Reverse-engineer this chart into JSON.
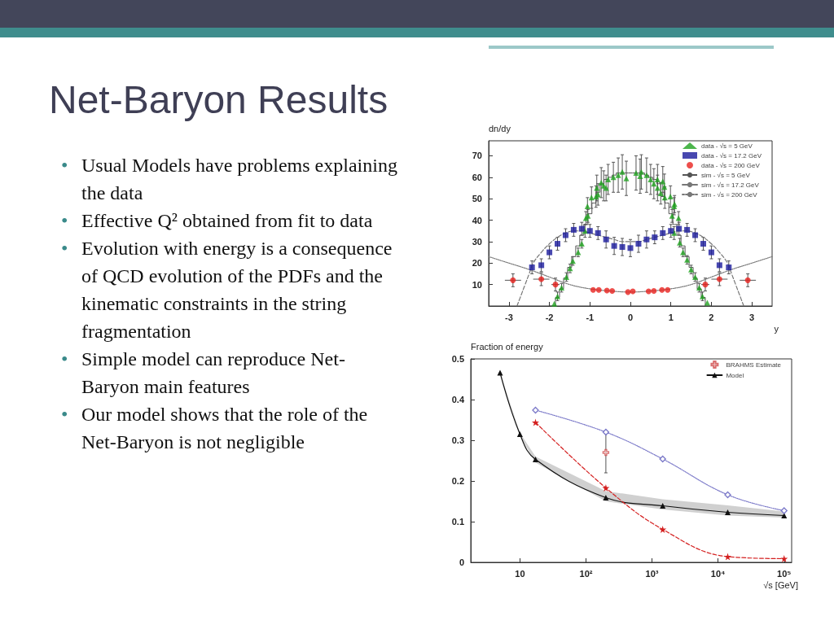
{
  "chart_data": [
    {
      "type": "other",
      "title": "Net-Baryon Results",
      "annotations": [
        "• Usual Models have problems explaining the data",
        "• Effective Q² obtained from fit to data",
        "• Evolution with energy is a consequence of QCD evolution of the PDFs and the kinematic constraints in the string fragmentation",
        "• Simple model can reproduce Net-Baryon main features",
        "• Our model shows that the role of the Net-Baryon is not negligible"
      ]
    },
    {
      "type": "scatter",
      "xlabel": "y",
      "ylabel": "dn/dy",
      "xlim": [
        -3.5,
        3.5
      ],
      "ylim": [
        0,
        77
      ],
      "xticks": [
        -3,
        -2,
        -1,
        0,
        1,
        2,
        3
      ],
      "yticks": [
        10,
        20,
        30,
        40,
        50,
        60,
        70
      ],
      "grid": false,
      "legend": "top right",
      "series": [
        {
          "name": "data - √s = 5 GeV",
          "color": "#1fa31f",
          "marker": "triangle",
          "x": [
            -1.88,
            -1.8,
            -1.7,
            -1.58,
            -1.49,
            -1.42,
            -1.29,
            -1.2,
            -1.12,
            -1.1,
            -1.05,
            -1.06,
            -0.96,
            -0.85,
            -0.83,
            -0.8,
            -0.72,
            -0.66,
            -0.6,
            -0.55,
            -0.42,
            -0.3,
            -0.2,
            -0.1,
            0.14,
            0.24,
            0.27,
            0.4,
            0.5,
            0.58,
            0.67,
            0.67,
            0.75,
            0.8,
            0.84,
            0.85,
            0.99,
            1.03,
            1.09,
            1.08,
            1.19,
            1.08,
            1.22,
            1.3,
            1.4,
            1.5,
            1.6,
            1.7,
            1.78,
            1.9
          ],
          "values": [
            1,
            4.5,
            8.5,
            13.5,
            17.5,
            21,
            25,
            29,
            35,
            41,
            42,
            46.5,
            50.5,
            51,
            55,
            52,
            57.5,
            56,
            55,
            59,
            60,
            61,
            62.5,
            59.5,
            62,
            60.5,
            62.5,
            61,
            59,
            57,
            59,
            55,
            52.5,
            58,
            55.5,
            50.5,
            51,
            42,
            47.5,
            46.5,
            41,
            34,
            29.5,
            25,
            21.5,
            17,
            13.5,
            8.5,
            4.5,
            1.5
          ],
          "errors": [
            null,
            2,
            2,
            2,
            2,
            2,
            2,
            2,
            3,
            3,
            3,
            4,
            5,
            5,
            6,
            5,
            7,
            7,
            6,
            7,
            7,
            8,
            8,
            8,
            8,
            8,
            8,
            8,
            7,
            7,
            7,
            6,
            5,
            7,
            6,
            5,
            5,
            3,
            4,
            4,
            3,
            3,
            2,
            2,
            2,
            2,
            2,
            2,
            2,
            null
          ]
        },
        {
          "name": "data - √s = 17.2 GeV",
          "color": "#1a1a9c",
          "marker": "square",
          "x": [
            -2.43,
            -2.2,
            -2.0,
            -1.8,
            -1.6,
            -1.4,
            -1.2,
            -1.0,
            -0.8,
            -0.6,
            -0.4,
            -0.2,
            0,
            0.2,
            0.4,
            0.6,
            0.8,
            1.0,
            1.2,
            1.4,
            1.6,
            1.8,
            2.0,
            2.2,
            2.43
          ],
          "values": [
            18,
            19,
            25,
            29,
            33,
            35.5,
            36,
            35,
            34,
            31,
            28,
            27.5,
            27,
            29,
            31,
            32,
            34,
            35,
            36,
            35.5,
            33,
            29,
            25,
            19,
            18
          ],
          "errors": [
            3,
            3,
            3,
            3,
            3,
            3,
            3,
            3,
            3,
            4,
            4,
            4,
            4,
            4,
            4,
            3,
            3,
            3,
            3,
            3,
            3,
            3,
            3,
            3,
            3
          ]
        },
        {
          "name": "data - √s = 200 GeV",
          "color": "#e8221e",
          "marker": "circle",
          "x": [
            -2.9,
            -2.2,
            -1.85,
            -0.92,
            -0.78,
            -0.58,
            -0.45,
            -0.06,
            0.06,
            0.45,
            0.58,
            0.78,
            0.92,
            1.85,
            2.2,
            2.9
          ],
          "values": [
            12,
            12.5,
            10,
            7.5,
            7.5,
            7.2,
            7,
            6.5,
            6.8,
            6.8,
            7,
            7.5,
            7.5,
            10,
            12.5,
            12
          ],
          "errors": [
            3,
            3,
            3,
            null,
            null,
            null,
            null,
            null,
            null,
            null,
            null,
            null,
            null,
            3,
            3,
            3
          ],
          "xerrors": [
            0.2,
            0.2,
            0.1,
            null,
            null,
            null,
            null,
            null,
            null,
            null,
            null,
            null,
            null,
            0.1,
            0.2,
            0.2
          ]
        },
        {
          "name": "sim - √s = 5 GeV",
          "type": "step",
          "color": "#555555",
          "marker": "none",
          "line_style": "solid",
          "x": [
            -2.0,
            -1.9,
            -1.8,
            -1.7,
            -1.6,
            -1.5,
            -1.4,
            -1.3,
            -1.2,
            -1.1,
            -1.0,
            -0.9,
            -0.8,
            -0.7,
            -0.6,
            -0.5,
            -0.4,
            -0.3,
            -0.2,
            -0.1,
            0,
            0.1,
            0.2,
            0.3,
            0.4,
            0.5,
            0.6,
            0.7,
            0.8,
            0.9,
            1.0,
            1.1,
            1.2,
            1.3,
            1.4,
            1.5,
            1.6,
            1.7,
            1.8,
            1.9,
            2.0
          ],
          "values": [
            0,
            0,
            4,
            8,
            13,
            18,
            23,
            28,
            33,
            38,
            43,
            48,
            53,
            57,
            59,
            60,
            61,
            62,
            62,
            62,
            62,
            62,
            62,
            62,
            61,
            60,
            59,
            57,
            53,
            48,
            43,
            38,
            33,
            28,
            23,
            18,
            13,
            8,
            4,
            0,
            0
          ]
        },
        {
          "name": "sim - √s = 17.2 GeV",
          "type": "line",
          "color": "#777777",
          "marker": "none",
          "line_style": "dashed",
          "x": [
            -2.8,
            -2.7,
            -2.6,
            -2.5,
            -2.4,
            -2.2,
            -2.0,
            -1.8,
            -1.6,
            -1.4,
            -1.2,
            -1.0,
            -0.8,
            -0.6,
            -0.4,
            -0.2,
            0,
            0.2,
            0.4,
            0.6,
            0.8,
            1.0,
            1.2,
            1.4,
            1.6,
            1.8,
            2.0,
            2.2,
            2.4,
            2.5,
            2.6,
            2.7,
            2.8
          ],
          "values": [
            0,
            5,
            10,
            15,
            20,
            25,
            29,
            32,
            34,
            35,
            35,
            34,
            33,
            32,
            31,
            30,
            30,
            30,
            31,
            32,
            33,
            34,
            35,
            35,
            34,
            32,
            29,
            25,
            20,
            15,
            10,
            5,
            0
          ]
        },
        {
          "name": "sim - √s = 200 GeV",
          "type": "line",
          "color": "#777777",
          "marker": "none",
          "line_style": "dotted",
          "x": [
            -3.5,
            -3,
            -2.5,
            -2,
            -1.5,
            -1,
            -0.5,
            0,
            0.5,
            1,
            1.5,
            2,
            2.5,
            3,
            3.5
          ],
          "values": [
            23,
            20,
            17,
            13.5,
            10,
            8,
            7,
            6.5,
            7,
            8,
            10,
            13.5,
            17,
            20,
            23
          ]
        }
      ]
    },
    {
      "type": "line",
      "xlabel": "√s [GeV]",
      "ylabel": "Fraction of energy",
      "log": "x",
      "xlim": [
        1.8,
        130000
      ],
      "ylim": [
        0,
        0.5
      ],
      "xticks": [
        10,
        {
          "value": 100,
          "label": "10²"
        },
        {
          "value": 1000,
          "label": "10³"
        },
        {
          "value": 10000,
          "label": "10⁴"
        },
        {
          "value": 100000,
          "label": "10⁵"
        }
      ],
      "yticks": [
        0,
        0.1,
        0.2,
        0.3,
        0.4,
        0.5
      ],
      "grid": false,
      "legend": "top right",
      "series": [
        {
          "name": "BRAHMS Estimate",
          "type": "scatter",
          "color": "#d04848",
          "marker": "cross",
          "x": [
            200
          ],
          "values": [
            0.27
          ],
          "errors": [
            [
              0.22,
              0.32
            ]
          ]
        },
        {
          "name": "Model",
          "color": "#111111",
          "marker": "triangle",
          "line_style": "solid",
          "x": [
            5,
            10,
            17.2,
            200,
            1450,
            14000,
            100000
          ],
          "values": [
            0.466,
            0.315,
            0.253,
            0.159,
            0.139,
            0.123,
            0.115
          ],
          "lower": [
            0.466,
            0.312,
            0.245,
            0.15,
            0.13,
            0.115,
            0.11
          ],
          "upper": [
            0.466,
            0.318,
            0.26,
            0.175,
            0.155,
            0.14,
            0.125
          ]
        },
        {
          "color": "#d42020",
          "marker": "star",
          "line_style": "dashed",
          "x": [
            17.2,
            200,
            1450,
            14000,
            100000
          ],
          "values": [
            0.344,
            0.183,
            0.081,
            0.014,
            0.009
          ]
        },
        {
          "color": "#7a78c8",
          "marker": "diamond",
          "line_style": "dotted",
          "x": [
            17.2,
            200,
            1450,
            14000,
            100000
          ],
          "values": [
            0.374,
            0.32,
            0.254,
            0.166,
            0.127
          ]
        }
      ]
    }
  ]
}
